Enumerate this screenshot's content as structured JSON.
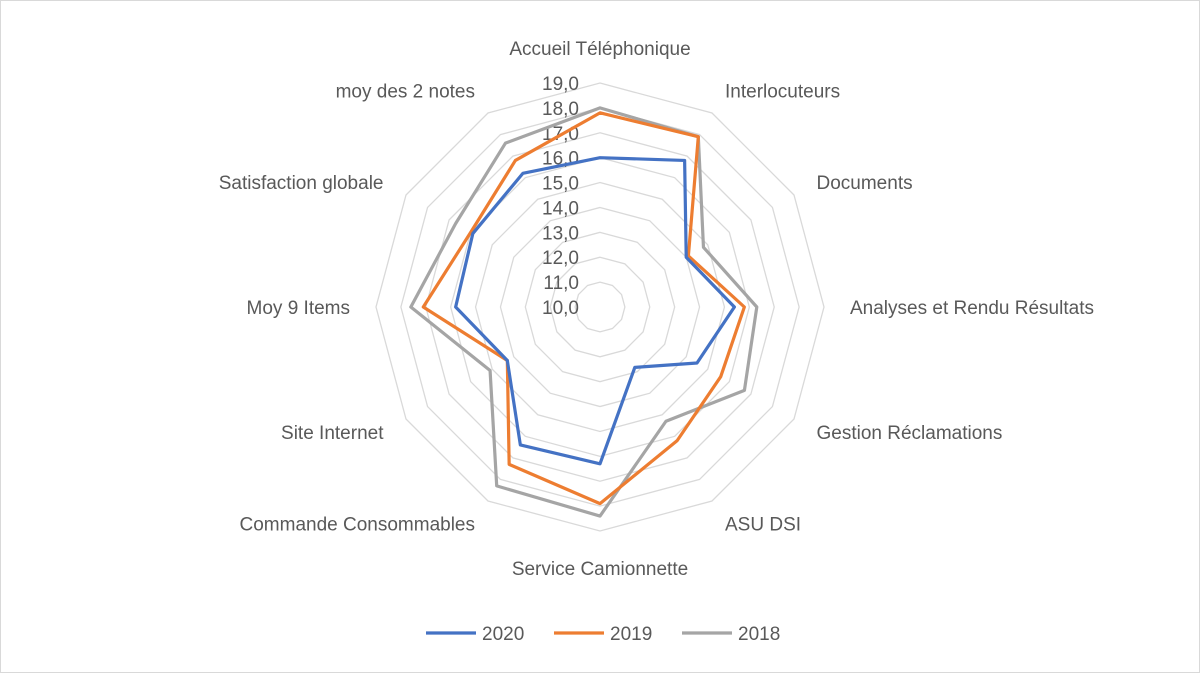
{
  "chart_data": {
    "type": "radar",
    "title": "",
    "categories": [
      "Accueil Téléphonique",
      "Interlocuteurs",
      "Documents",
      "Analyses et Rendu Résultats",
      "Gestion Réclamations",
      "ASU DSI",
      "Service Camionnette",
      "Commande Consommables",
      "Site Internet",
      "Moy 9 Items",
      "Satisfaction globale",
      "moy des 2 notes"
    ],
    "r_ticks": [
      "10,0",
      "11,0",
      "12,0",
      "13,0",
      "14,0",
      "15,0",
      "16,0",
      "17,0",
      "18,0",
      "19,0"
    ],
    "r_min": 10,
    "r_max": 19,
    "grid": true,
    "legend_position": "bottom",
    "series": [
      {
        "name": "2020",
        "color": "#4472c4",
        "values": [
          16.0,
          16.8,
          14.0,
          15.4,
          14.5,
          12.8,
          16.3,
          16.4,
          14.3,
          15.8,
          15.9,
          16.2
        ]
      },
      {
        "name": "2019",
        "color": "#ed7d31",
        "values": [
          17.8,
          17.9,
          14.1,
          15.8,
          15.6,
          16.2,
          17.9,
          17.3,
          14.3,
          17.1,
          16.0,
          16.8
        ]
      },
      {
        "name": "2018",
        "color": "#a5a5a5",
        "values": [
          18.0,
          17.9,
          14.8,
          16.3,
          16.7,
          15.3,
          18.4,
          18.3,
          15.1,
          17.6,
          16.7,
          17.6
        ]
      }
    ]
  }
}
